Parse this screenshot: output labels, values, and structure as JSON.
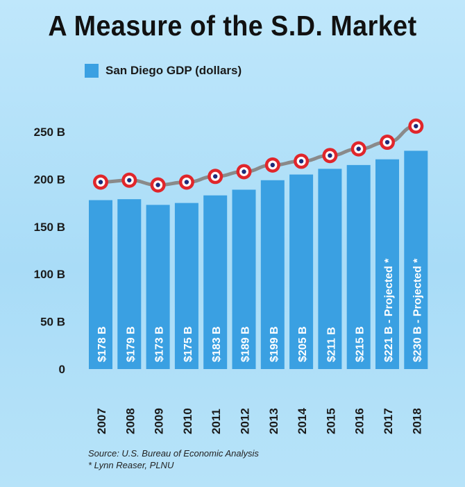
{
  "title": "A Measure of the S.D. Market",
  "legend": {
    "label": "San Diego GDP (dollars)",
    "color": "#3aa0e2"
  },
  "source": {
    "line1": "Source: U.S. Bureau of Economic Analysis",
    "line2": "* Lynn Reaser, PLNU"
  },
  "chart_data": {
    "type": "bar",
    "categories": [
      "2007",
      "2008",
      "2009",
      "2010",
      "2011",
      "2012",
      "2013",
      "2014",
      "2015",
      "2016",
      "2017",
      "2018"
    ],
    "values": [
      178,
      179,
      173,
      175,
      183,
      189,
      199,
      205,
      211,
      215,
      221,
      230
    ],
    "data_labels": [
      "$178 B",
      "$179 B",
      "$173 B",
      "$175 B",
      "$183 B",
      "$189 B",
      "$199 B",
      "$205 B",
      "$211 B",
      "$215 B",
      "$221 B - Projected *",
      "$230 B - Projected *"
    ],
    "y_ticks": [
      0,
      50,
      100,
      150,
      200,
      250
    ],
    "y_tick_labels": [
      "0",
      "50 B",
      "100 B",
      "150 B",
      "200 B",
      "250 B"
    ],
    "ylim": [
      0,
      250
    ],
    "trend_line": [
      197,
      199,
      194,
      197,
      203,
      208,
      215,
      219,
      225,
      232,
      239,
      256
    ],
    "bar_color": "#3aa0e2",
    "line_color": "#8a8a8a",
    "marker_ring_color": "#e0262b",
    "marker_center_color": "#1b2a7a",
    "grid": false,
    "legend_position": "top-left"
  }
}
